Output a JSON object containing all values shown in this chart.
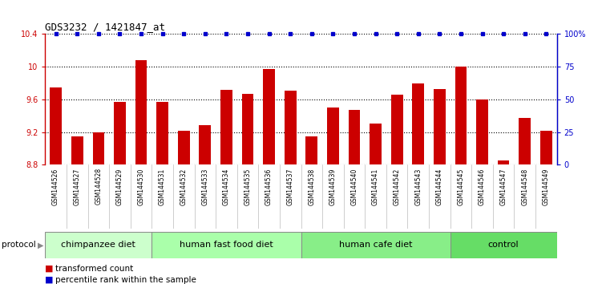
{
  "title": "GDS3232 / 1421847_at",
  "samples": [
    "GSM144526",
    "GSM144527",
    "GSM144528",
    "GSM144529",
    "GSM144530",
    "GSM144531",
    "GSM144532",
    "GSM144533",
    "GSM144534",
    "GSM144535",
    "GSM144536",
    "GSM144537",
    "GSM144538",
    "GSM144539",
    "GSM144540",
    "GSM144541",
    "GSM144542",
    "GSM144543",
    "GSM144544",
    "GSM144545",
    "GSM144546",
    "GSM144547",
    "GSM144548",
    "GSM144549"
  ],
  "bar_values": [
    9.75,
    9.15,
    9.2,
    9.57,
    10.08,
    9.57,
    9.22,
    9.28,
    9.72,
    9.67,
    9.97,
    9.71,
    9.15,
    9.5,
    9.47,
    9.3,
    9.66,
    9.8,
    9.73,
    10.0,
    9.6,
    8.85,
    9.37,
    9.22
  ],
  "percentile_values": [
    100,
    100,
    100,
    100,
    100,
    100,
    100,
    100,
    100,
    100,
    100,
    100,
    100,
    100,
    100,
    100,
    100,
    100,
    100,
    100,
    100,
    100,
    100,
    100
  ],
  "groups": [
    {
      "label": "chimpanzee diet",
      "start": 0,
      "end": 5,
      "color": "#ccffcc"
    },
    {
      "label": "human fast food diet",
      "start": 5,
      "end": 12,
      "color": "#aaffaa"
    },
    {
      "label": "human cafe diet",
      "start": 12,
      "end": 19,
      "color": "#88ee88"
    },
    {
      "label": "control",
      "start": 19,
      "end": 24,
      "color": "#66dd66"
    }
  ],
  "bar_color": "#cc0000",
  "percentile_color": "#0000cc",
  "ylim": [
    8.8,
    10.4
  ],
  "yticks_left": [
    8.8,
    9.2,
    9.6,
    10.0,
    10.4
  ],
  "yticks_right_pct": [
    0,
    25,
    50,
    75,
    100
  ],
  "yticks_right_labels": [
    "0",
    "25",
    "50",
    "75",
    "100%"
  ],
  "bar_color_hex": "#cc0000",
  "pct_color_hex": "#0000cc",
  "left_tick_color": "#cc0000",
  "right_tick_color": "#0000cc",
  "grid_linestyle": ":",
  "grid_linewidth": 0.8,
  "title_fontsize": 9,
  "bar_tick_fontsize": 7,
  "sample_fontsize": 5.5,
  "group_fontsize": 8,
  "legend_fontsize": 7.5
}
